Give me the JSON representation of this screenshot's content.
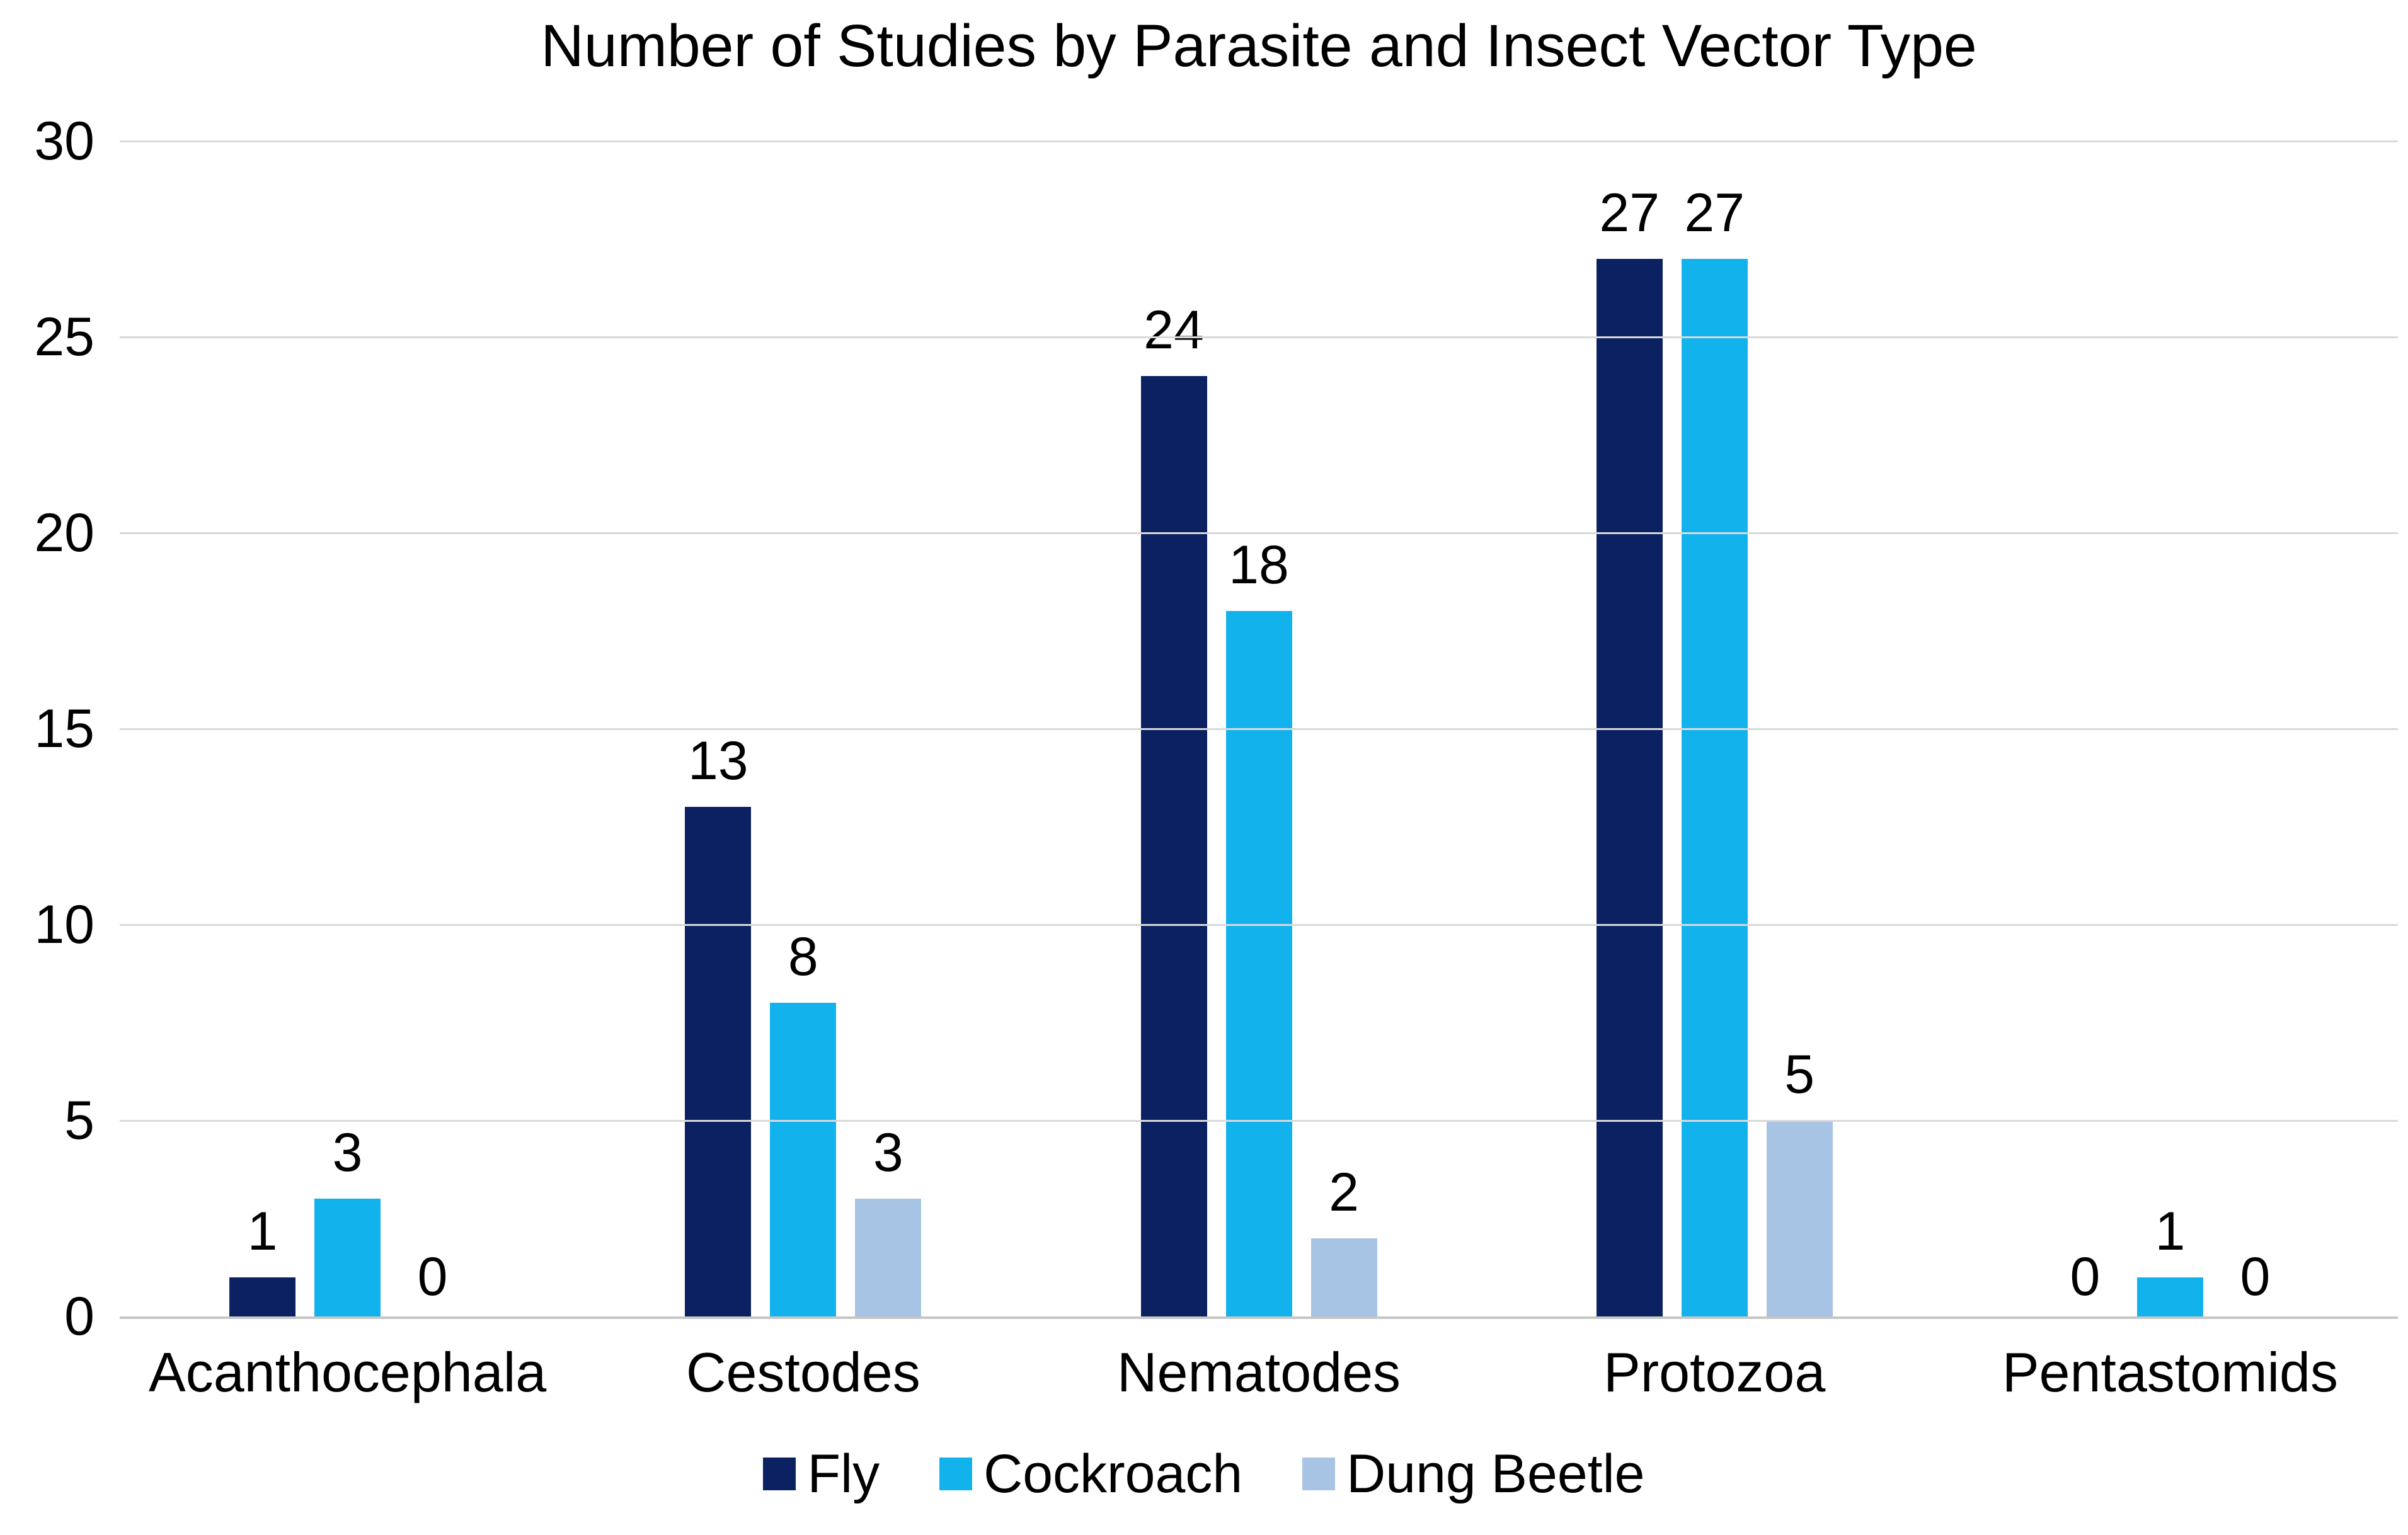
{
  "chart_data": {
    "type": "bar",
    "title": "Number of Studies by Parasite and Insect Vector Type",
    "categories": [
      "Acanthocephala",
      "Cestodes",
      "Nematodes",
      "Protozoa",
      "Pentastomids"
    ],
    "series": [
      {
        "name": "Fly",
        "color": "#0b2161",
        "values": [
          1,
          13,
          24,
          27,
          0
        ]
      },
      {
        "name": "Cockroach",
        "color": "#12b3ed",
        "values": [
          3,
          8,
          18,
          27,
          1
        ]
      },
      {
        "name": "Dung Beetle",
        "color": "#a8c4e4",
        "values": [
          0,
          3,
          2,
          5,
          0
        ]
      }
    ],
    "xlabel": "",
    "ylabel": "",
    "ylim": [
      0,
      30
    ],
    "yticks": [
      0,
      5,
      10,
      15,
      20,
      25,
      30
    ],
    "grid": true,
    "legend_position": "bottom"
  },
  "colors": {
    "gridline": "#d9d9d9",
    "axis_line": "#c6c6c6",
    "text": "#000000",
    "background": "#ffffff"
  }
}
